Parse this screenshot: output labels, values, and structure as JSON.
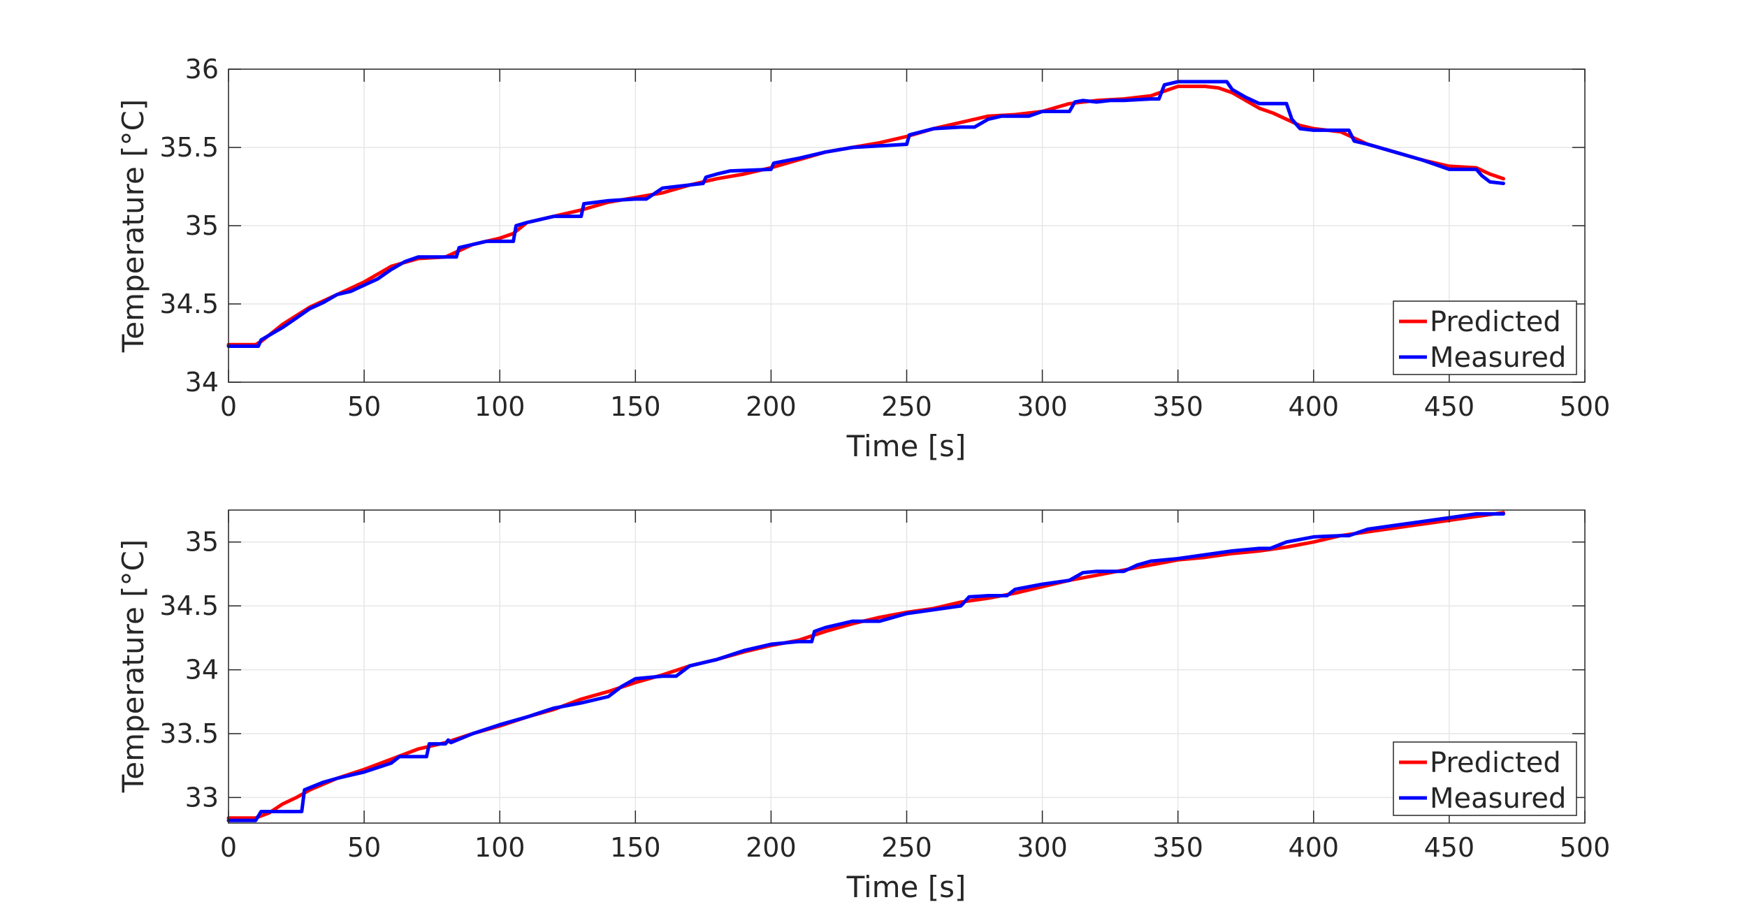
{
  "colors": {
    "predicted": "#ff0000",
    "measured": "#0000ff",
    "grid": "#e6e6e6",
    "axis": "#262626"
  },
  "chart_data": [
    {
      "type": "line",
      "title": "",
      "xlabel": "Time [s]",
      "ylabel": "Temperature [°C]",
      "xlim": [
        0,
        500
      ],
      "ylim": [
        34,
        36
      ],
      "xticks": [
        "0",
        "50",
        "100",
        "150",
        "200",
        "250",
        "300",
        "350",
        "400",
        "450",
        "500"
      ],
      "yticks": [
        "34",
        "34.5",
        "35",
        "35.5",
        "36"
      ],
      "grid": true,
      "legend": "bottom-right",
      "series": [
        {
          "name": "Predicted",
          "color": "#ff0000",
          "x": [
            0,
            10,
            12,
            20,
            30,
            40,
            50,
            60,
            70,
            80,
            90,
            100,
            105,
            110,
            120,
            130,
            140,
            150,
            160,
            170,
            180,
            190,
            200,
            210,
            220,
            230,
            240,
            250,
            260,
            270,
            280,
            290,
            300,
            310,
            320,
            330,
            340,
            345,
            350,
            355,
            360,
            365,
            370,
            375,
            380,
            385,
            390,
            395,
            400,
            405,
            410,
            415,
            420,
            430,
            440,
            450,
            460,
            465,
            470
          ],
          "y": [
            34.24,
            34.24,
            34.26,
            34.37,
            34.48,
            34.56,
            34.64,
            34.74,
            34.79,
            34.8,
            34.88,
            34.92,
            34.95,
            35.02,
            35.06,
            35.1,
            35.15,
            35.18,
            35.21,
            35.26,
            35.3,
            35.33,
            35.37,
            35.42,
            35.47,
            35.5,
            35.53,
            35.57,
            35.62,
            35.66,
            35.7,
            35.71,
            35.73,
            35.78,
            35.8,
            35.81,
            35.83,
            35.86,
            35.89,
            35.89,
            35.89,
            35.88,
            35.85,
            35.8,
            35.75,
            35.72,
            35.68,
            35.64,
            35.62,
            35.61,
            35.6,
            35.56,
            35.52,
            35.47,
            35.42,
            35.38,
            35.37,
            35.33,
            35.3
          ]
        },
        {
          "name": "Measured",
          "color": "#0000ff",
          "x": [
            0,
            11,
            12,
            15,
            20,
            25,
            30,
            35,
            40,
            45,
            50,
            55,
            60,
            65,
            70,
            84,
            85,
            90,
            95,
            105,
            106,
            110,
            120,
            130,
            131,
            140,
            150,
            154,
            160,
            175,
            176,
            180,
            185,
            200,
            201,
            210,
            220,
            230,
            240,
            250,
            251,
            260,
            270,
            275,
            280,
            285,
            295,
            300,
            310,
            312,
            315,
            320,
            325,
            330,
            340,
            343,
            345,
            350,
            355,
            360,
            368,
            370,
            375,
            380,
            390,
            392,
            395,
            400,
            410,
            413,
            415,
            420,
            430,
            440,
            450,
            460,
            462,
            465,
            470
          ],
          "y": [
            34.23,
            34.23,
            34.27,
            34.3,
            34.35,
            34.41,
            34.47,
            34.51,
            34.56,
            34.58,
            34.62,
            34.66,
            34.72,
            34.77,
            34.8,
            34.8,
            34.86,
            34.88,
            34.9,
            34.9,
            35.0,
            35.02,
            35.06,
            35.06,
            35.14,
            35.16,
            35.17,
            35.17,
            35.24,
            35.27,
            35.31,
            35.33,
            35.35,
            35.36,
            35.4,
            35.43,
            35.47,
            35.5,
            35.51,
            35.52,
            35.58,
            35.62,
            35.63,
            35.63,
            35.68,
            35.7,
            35.7,
            35.73,
            35.73,
            35.79,
            35.8,
            35.79,
            35.8,
            35.8,
            35.81,
            35.81,
            35.9,
            35.92,
            35.92,
            35.92,
            35.92,
            35.87,
            35.82,
            35.78,
            35.78,
            35.68,
            35.62,
            35.61,
            35.61,
            35.61,
            35.54,
            35.52,
            35.47,
            35.42,
            35.36,
            35.36,
            35.32,
            35.28,
            35.27
          ]
        }
      ]
    },
    {
      "type": "line",
      "title": "",
      "xlabel": "Time [s]",
      "ylabel": "Temperature [°C]",
      "xlim": [
        0,
        500
      ],
      "ylim": [
        32.8,
        35.25
      ],
      "xticks": [
        "0",
        "50",
        "100",
        "150",
        "200",
        "250",
        "300",
        "350",
        "400",
        "450",
        "500"
      ],
      "yticks": [
        "33",
        "33.5",
        "34",
        "34.5",
        "35"
      ],
      "grid": true,
      "legend": "bottom-right",
      "series": [
        {
          "name": "Predicted",
          "color": "#ff0000",
          "x": [
            0,
            10,
            15,
            20,
            25,
            30,
            40,
            50,
            60,
            70,
            80,
            90,
            100,
            110,
            120,
            130,
            140,
            150,
            160,
            170,
            180,
            190,
            200,
            210,
            220,
            230,
            240,
            250,
            260,
            270,
            280,
            290,
            300,
            310,
            320,
            330,
            340,
            350,
            360,
            370,
            380,
            390,
            400,
            410,
            420,
            430,
            440,
            450,
            460,
            470
          ],
          "y": [
            32.84,
            32.84,
            32.88,
            32.95,
            33.0,
            33.06,
            33.15,
            33.22,
            33.3,
            33.38,
            33.43,
            33.5,
            33.56,
            33.63,
            33.69,
            33.77,
            33.83,
            33.9,
            33.96,
            34.03,
            34.08,
            34.14,
            34.19,
            34.23,
            34.3,
            34.36,
            34.41,
            34.45,
            34.48,
            34.53,
            34.56,
            34.6,
            34.65,
            34.7,
            34.74,
            34.78,
            34.82,
            34.86,
            34.88,
            34.91,
            34.93,
            34.96,
            35.0,
            35.05,
            35.08,
            35.11,
            35.14,
            35.17,
            35.2,
            35.23
          ]
        },
        {
          "name": "Measured",
          "color": "#0000ff",
          "x": [
            0,
            10,
            12,
            27,
            28,
            35,
            40,
            50,
            60,
            63,
            73,
            74,
            80,
            81,
            82,
            90,
            100,
            105,
            110,
            120,
            130,
            140,
            145,
            150,
            160,
            165,
            170,
            180,
            190,
            200,
            210,
            213,
            215,
            216,
            220,
            230,
            232,
            240,
            250,
            260,
            270,
            273,
            280,
            287,
            290,
            300,
            310,
            315,
            320,
            330,
            335,
            340,
            350,
            360,
            370,
            380,
            384,
            390,
            400,
            410,
            413,
            420,
            430,
            440,
            450,
            460,
            470
          ],
          "y": [
            32.82,
            32.82,
            32.89,
            32.89,
            33.06,
            33.12,
            33.15,
            33.2,
            33.27,
            33.32,
            33.32,
            33.42,
            33.42,
            33.45,
            33.43,
            33.5,
            33.57,
            33.6,
            33.63,
            33.7,
            33.74,
            33.79,
            33.87,
            33.93,
            33.95,
            33.95,
            34.03,
            34.08,
            34.15,
            34.2,
            34.22,
            34.22,
            34.22,
            34.3,
            34.33,
            34.38,
            34.38,
            34.38,
            34.44,
            34.47,
            34.5,
            34.57,
            34.58,
            34.58,
            34.63,
            34.67,
            34.7,
            34.76,
            34.77,
            34.77,
            34.82,
            34.85,
            34.87,
            34.9,
            34.93,
            34.95,
            34.95,
            35.0,
            35.04,
            35.05,
            35.05,
            35.1,
            35.13,
            35.16,
            35.19,
            35.22,
            35.22
          ]
        }
      ]
    }
  ]
}
